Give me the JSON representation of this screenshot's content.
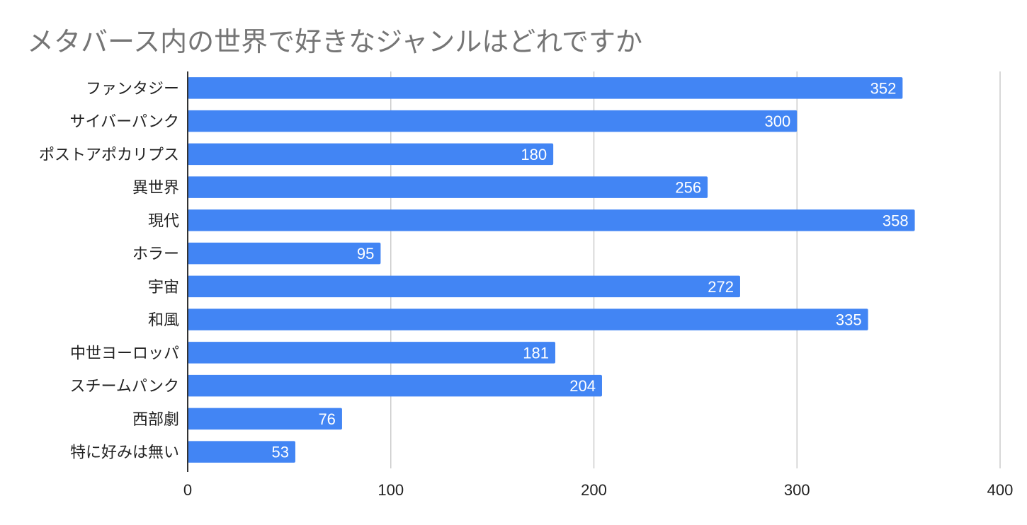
{
  "chart_data": {
    "type": "bar",
    "orientation": "horizontal",
    "title": "メタバース内の世界で好きなジャンルはどれですか",
    "categories": [
      "ファンタジー",
      "サイバーパンク",
      "ポストアポカリプス",
      "異世界",
      "現代",
      "ホラー",
      "宇宙",
      "和風",
      "中世ヨーロッパ",
      "スチームパンク",
      "西部劇",
      "特に好みは無い"
    ],
    "values": [
      352,
      300,
      180,
      256,
      358,
      95,
      272,
      335,
      181,
      204,
      76,
      53
    ],
    "xlim": [
      0,
      400
    ],
    "xticks": [
      0,
      100,
      200,
      300,
      400
    ],
    "grid": true,
    "data_labels": true,
    "bar_color": "#4285f4",
    "grid_color": "#cccccc",
    "legend": "none"
  }
}
